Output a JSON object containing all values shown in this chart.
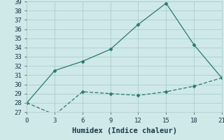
{
  "xlabel": "Humidex (Indice chaleur)",
  "x_upper": [
    0,
    3,
    6,
    9,
    12,
    15,
    18,
    21
  ],
  "y_upper": [
    28,
    31.5,
    32.5,
    33.8,
    36.5,
    38.8,
    34.3,
    30.7
  ],
  "x_lower": [
    0,
    3,
    6,
    9,
    12,
    15,
    18,
    21
  ],
  "y_lower": [
    28,
    26.7,
    29.2,
    29.0,
    28.8,
    29.2,
    29.8,
    30.7
  ],
  "line_color": "#2a7a70",
  "marker": "D",
  "markersize": 2.5,
  "bg_color": "#cfe8e8",
  "grid_color": "#aacece",
  "xlim": [
    0,
    21
  ],
  "ylim": [
    27,
    39
  ],
  "xticks": [
    0,
    3,
    6,
    9,
    12,
    15,
    18,
    21
  ],
  "yticks": [
    27,
    28,
    29,
    30,
    31,
    32,
    33,
    34,
    35,
    36,
    37,
    38,
    39
  ],
  "font_color": "#1a3a4a",
  "font_family": "monospace",
  "tick_fontsize": 6.5,
  "xlabel_fontsize": 7.5
}
